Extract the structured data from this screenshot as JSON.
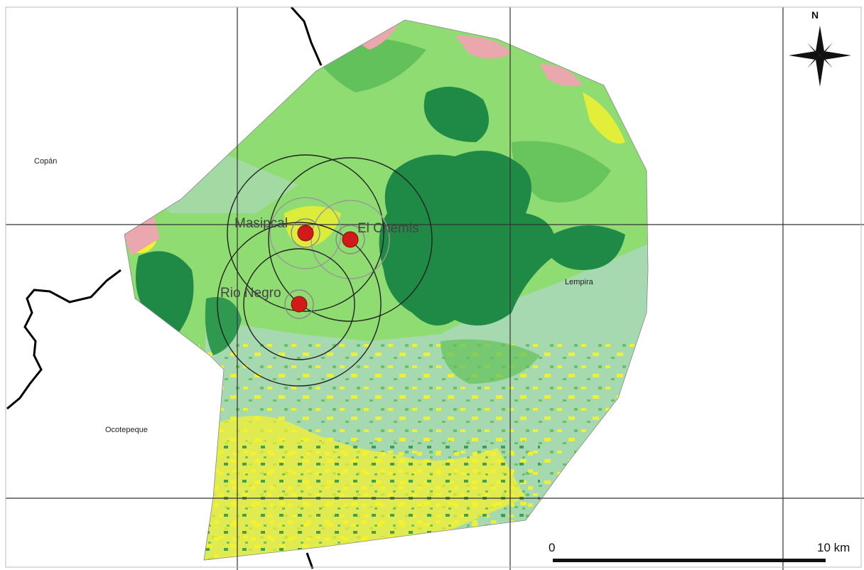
{
  "regions": {
    "copan": "Copán",
    "ocotepeque": "Ocotepeque",
    "lempira": "Lempira"
  },
  "sites": [
    {
      "name": "Masipcal",
      "label": "Masipcal"
    },
    {
      "name": "El Chemis",
      "label": "El Chemis"
    },
    {
      "name": "Rio Negro",
      "label": "Rio Negro"
    }
  ],
  "scale_bar": {
    "start": "0",
    "end": "10 km"
  },
  "north_arrow": {
    "label": "N"
  },
  "colors": {
    "dense_forest": "#1e8a45",
    "forest": "#62c15a",
    "light_vegetation": "#8fdc72",
    "pale_vegetation": "#a7d9b0",
    "agriculture": "#f6f22a",
    "urban": "#eaa8ae",
    "site_marker": "#d11a1a",
    "border": "#000000"
  }
}
